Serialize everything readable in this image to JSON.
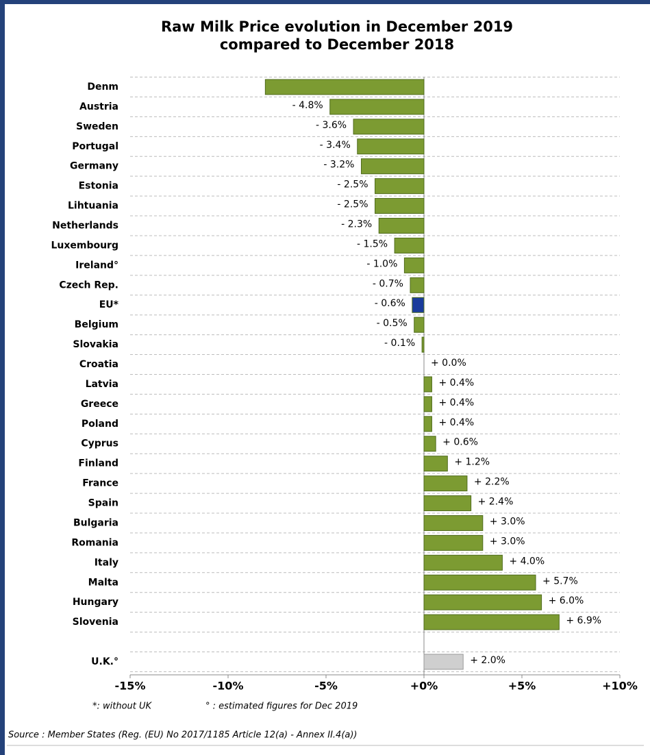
{
  "chart_data": {
    "type": "bar",
    "orientation": "horizontal",
    "title": [
      "Raw Milk Price evolution in December 2019",
      "compared to December 2018"
    ],
    "categories": [
      "Denm",
      "Austria",
      "Sweden",
      "Portugal",
      "Germany",
      "Estonia",
      "Lihtuania",
      "Netherlands",
      "Luxembourg",
      "Ireland°",
      "Czech Rep.",
      "EU*",
      "Belgium",
      "Slovakia",
      "Croatia",
      "Latvia",
      "Greece",
      "Poland",
      "Cyprus",
      "Finland",
      "France",
      "Spain",
      "Bulgaria",
      "Romania",
      "Italy",
      "Malta",
      "Hungary",
      "Slovenia",
      "U.K.°"
    ],
    "values": [
      -8.1,
      -4.8,
      -3.6,
      -3.4,
      -3.2,
      -2.5,
      -2.5,
      -2.3,
      -1.5,
      -1.0,
      -0.7,
      -0.6,
      -0.5,
      -0.1,
      0.0,
      0.4,
      0.4,
      0.4,
      0.6,
      1.2,
      2.2,
      2.4,
      3.0,
      3.0,
      4.0,
      5.7,
      6.0,
      6.9,
      2.0
    ],
    "value_labels": [
      null,
      "- 4.8%",
      "- 3.6%",
      "- 3.4%",
      "- 3.2%",
      "- 2.5%",
      "- 2.5%",
      "- 2.3%",
      "- 1.5%",
      "- 1.0%",
      "- 0.7%",
      "- 0.6%",
      "- 0.5%",
      "- 0.1%",
      "+ 0.0%",
      "+ 0.4%",
      "+ 0.4%",
      "+ 0.4%",
      "+ 0.6%",
      "+ 1.2%",
      "+ 2.2%",
      "+ 2.4%",
      "+ 3.0%",
      "+ 3.0%",
      "+ 4.0%",
      "+ 5.7%",
      "+ 6.0%",
      "+ 6.9%",
      "+ 2.0%"
    ],
    "colors": [
      "#7c9b32",
      "#7c9b32",
      "#7c9b32",
      "#7c9b32",
      "#7c9b32",
      "#7c9b32",
      "#7c9b32",
      "#7c9b32",
      "#7c9b32",
      "#7c9b32",
      "#7c9b32",
      "#1a3c9c",
      "#7c9b32",
      "#7c9b32",
      "#7c9b32",
      "#7c9b32",
      "#7c9b32",
      "#7c9b32",
      "#7c9b32",
      "#7c9b32",
      "#7c9b32",
      "#7c9b32",
      "#7c9b32",
      "#7c9b32",
      "#7c9b32",
      "#7c9b32",
      "#7c9b32",
      "#7c9b32",
      "#cfcfcf"
    ],
    "xlim": [
      -15,
      10
    ],
    "xticks": [
      {
        "value": -15,
        "label": "-15%"
      },
      {
        "value": -10,
        "label": "-10%"
      },
      {
        "value": -5,
        "label": "-5%"
      },
      {
        "value": 0,
        "label": "+0%"
      },
      {
        "value": 5,
        "label": "+5%"
      },
      {
        "value": 10,
        "label": "+10%"
      }
    ],
    "grid": true,
    "footnotes": [
      "*: without UK",
      "° : estimated figures for Dec 2019"
    ],
    "source": "Source : Member States (Reg. (EU) No 2017/1185 Article 12(a) - Annex II.4(a))"
  }
}
